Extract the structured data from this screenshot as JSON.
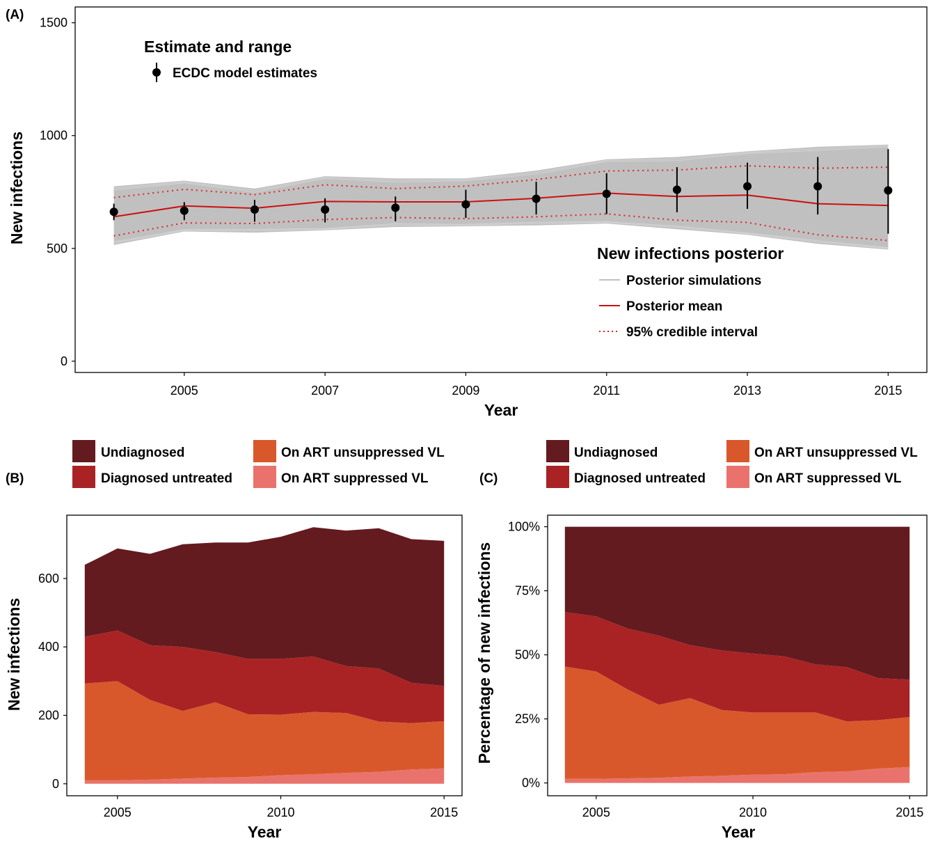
{
  "colors": {
    "undiagnosed": "#631b1f",
    "diagnosed_untreated": "#a92325",
    "on_art_unsuppressed": "#d9582b",
    "on_art_suppressed": "#e9736c",
    "posterior_sim": "#c0c0c0",
    "posterior_mean": "#cc1010",
    "ci": "#e02020",
    "estimate": "#000000"
  },
  "chart_data": [
    {
      "panel": "(A)",
      "type": "line",
      "xlabel": "Year",
      "ylabel": "New infections",
      "x_ticks": [
        2005,
        2007,
        2009,
        2011,
        2013,
        2015
      ],
      "y_ticks": [
        0,
        500,
        1000,
        1500
      ],
      "xlim": [
        2003.45,
        2015.55
      ],
      "ylim": [
        -50,
        1570
      ],
      "grid": false,
      "legend_estimate": {
        "title": "Estimate and range",
        "label": "ECDC model estimates",
        "placement": "top-left"
      },
      "legend_posterior": {
        "title": "New infections posterior",
        "labels": [
          "Posterior simulations",
          "Posterior mean",
          "95% credible interval"
        ],
        "placement": "bottom-right"
      },
      "x": [
        2004,
        2005,
        2006,
        2007,
        2008,
        2009,
        2010,
        2011,
        2012,
        2013,
        2014,
        2015
      ],
      "estimates": [
        {
          "year": 2004,
          "value": 662,
          "low": 625,
          "high": 698
        },
        {
          "year": 2005,
          "value": 667,
          "low": 625,
          "high": 705
        },
        {
          "year": 2006,
          "value": 672,
          "low": 618,
          "high": 715
        },
        {
          "year": 2007,
          "value": 672,
          "low": 615,
          "high": 722
        },
        {
          "year": 2008,
          "value": 680,
          "low": 620,
          "high": 730
        },
        {
          "year": 2009,
          "value": 695,
          "low": 635,
          "high": 760
        },
        {
          "year": 2010,
          "value": 720,
          "low": 650,
          "high": 795
        },
        {
          "year": 2011,
          "value": 742,
          "low": 652,
          "high": 833
        },
        {
          "year": 2012,
          "value": 760,
          "low": 660,
          "high": 860
        },
        {
          "year": 2013,
          "value": 775,
          "low": 675,
          "high": 880
        },
        {
          "year": 2014,
          "value": 775,
          "low": 650,
          "high": 905
        },
        {
          "year": 2015,
          "value": 757,
          "low": 565,
          "high": 940
        }
      ],
      "posterior_mean": [
        640,
        688,
        678,
        708,
        706,
        706,
        722,
        745,
        730,
        736,
        698,
        690
      ],
      "ci_lower": [
        555,
        613,
        610,
        628,
        637,
        632,
        640,
        653,
        625,
        615,
        560,
        535
      ],
      "ci_upper": [
        725,
        762,
        738,
        782,
        765,
        776,
        805,
        843,
        847,
        866,
        855,
        860
      ],
      "band_lower": [
        515,
        575,
        570,
        580,
        595,
        598,
        602,
        610,
        585,
        560,
        520,
        495
      ],
      "band_upper": [
        775,
        800,
        765,
        820,
        810,
        810,
        845,
        895,
        905,
        930,
        950,
        960
      ]
    },
    {
      "panel": "(B)",
      "type": "area",
      "xlabel": "Year",
      "ylabel": "New infections",
      "x_ticks": [
        2005,
        2010,
        2015
      ],
      "y_ticks": [
        0,
        200,
        400,
        600
      ],
      "xlim": [
        2003.45,
        2015.55
      ],
      "ylim": [
        -35,
        785
      ],
      "grid": false,
      "legend": [
        "Undiagnosed",
        "Diagnosed untreated",
        "On ART unsuppressed VL",
        "On ART suppressed VL"
      ],
      "legend_placement": "top",
      "x": [
        2004,
        2005,
        2006,
        2007,
        2008,
        2009,
        2010,
        2011,
        2012,
        2013,
        2014,
        2015
      ],
      "series": [
        {
          "name": "On ART suppressed VL",
          "values": [
            10,
            10,
            12,
            15,
            18,
            20,
            25,
            28,
            32,
            35,
            42,
            45
          ]
        },
        {
          "name": "On ART unsuppressed VL",
          "values": [
            283,
            290,
            233,
            198,
            220,
            183,
            177,
            182,
            175,
            147,
            135,
            138
          ]
        },
        {
          "name": "Diagnosed untreated",
          "values": [
            137,
            148,
            160,
            187,
            147,
            162,
            163,
            162,
            137,
            155,
            118,
            103
          ]
        },
        {
          "name": "Undiagnosed",
          "values": [
            210,
            240,
            267,
            300,
            320,
            340,
            357,
            378,
            396,
            410,
            420,
            424
          ]
        }
      ]
    },
    {
      "panel": "(C)",
      "type": "area",
      "xlabel": "Year",
      "ylabel": "Percentage of new infections",
      "x_ticks": [
        2005,
        2010,
        2015
      ],
      "y_ticks": [
        "0%",
        "25%",
        "50%",
        "75%",
        "100%"
      ],
      "xlim": [
        2003.45,
        2015.55
      ],
      "ylim": [
        -0.05,
        1.045
      ],
      "grid": false,
      "legend": [
        "Undiagnosed",
        "Diagnosed untreated",
        "On ART unsuppressed VL",
        "On ART suppressed VL"
      ],
      "legend_placement": "top",
      "x": [
        2004,
        2005,
        2006,
        2007,
        2008,
        2009,
        2010,
        2011,
        2012,
        2013,
        2014,
        2015
      ],
      "series": [
        {
          "name": "On ART suppressed VL",
          "values": [
            0.016,
            0.016,
            0.018,
            0.02,
            0.025,
            0.028,
            0.032,
            0.034,
            0.042,
            0.045,
            0.056,
            0.062
          ]
        },
        {
          "name": "On ART unsuppressed VL",
          "values": [
            0.438,
            0.419,
            0.347,
            0.285,
            0.306,
            0.257,
            0.243,
            0.241,
            0.233,
            0.195,
            0.189,
            0.195
          ]
        },
        {
          "name": "Diagnosed untreated",
          "values": [
            0.213,
            0.215,
            0.238,
            0.27,
            0.207,
            0.232,
            0.23,
            0.219,
            0.188,
            0.212,
            0.164,
            0.146
          ]
        },
        {
          "name": "Undiagnosed",
          "values": [
            0.333,
            0.35,
            0.397,
            0.425,
            0.462,
            0.483,
            0.495,
            0.506,
            0.537,
            0.548,
            0.591,
            0.597
          ]
        }
      ]
    }
  ]
}
